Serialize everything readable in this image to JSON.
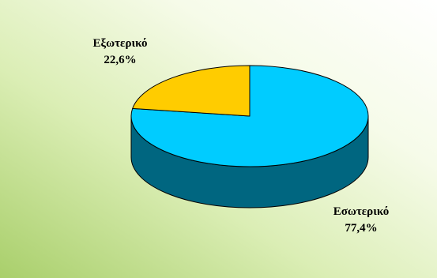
{
  "chart_data": {
    "type": "pie",
    "title": "",
    "slices": [
      {
        "label": "Εσωτερικό",
        "value": 77.4,
        "value_label": "77,4%",
        "top_color": "#00CCFF",
        "side_color": "#006680"
      },
      {
        "label": "Εξωτερικό",
        "value": 22.6,
        "value_label": "22,6%",
        "top_color": "#FFCC00",
        "side_color": "#806600"
      }
    ],
    "style": "3d",
    "legend": "none",
    "background": "gradient white to light green"
  }
}
